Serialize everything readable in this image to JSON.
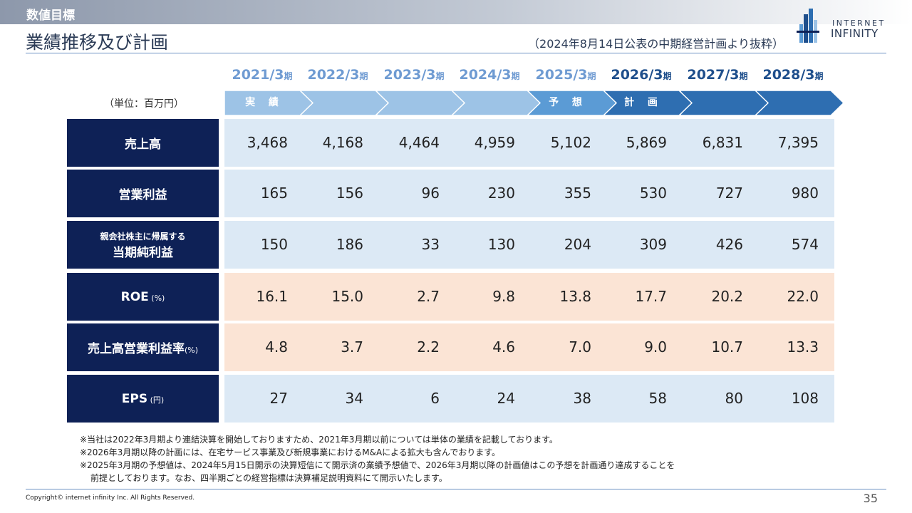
{
  "header": {
    "section_label": "数値目標",
    "title": "業績推移及び計画",
    "subtitle": "（2024年8月14日公表の中期経営計画より抜粋）"
  },
  "logo": {
    "line1": "INTERNET",
    "line2": "INFINITY"
  },
  "table": {
    "unit": "（単位：百万円）",
    "year_suffix": "期",
    "years": [
      {
        "label": "2021/3",
        "color": "#6f9bd2"
      },
      {
        "label": "2022/3",
        "color": "#6f9bd2"
      },
      {
        "label": "2023/3",
        "color": "#6f9bd2"
      },
      {
        "label": "2024/3",
        "color": "#6f9bd2"
      },
      {
        "label": "2025/3",
        "color": "#6f9bd2"
      },
      {
        "label": "2026/3",
        "color": "#1f4f8c"
      },
      {
        "label": "2027/3",
        "color": "#1f4f8c"
      },
      {
        "label": "2028/3",
        "color": "#1f4f8c"
      }
    ],
    "arrows": [
      {
        "text": "実 績",
        "color": "#9dc3e6"
      },
      {
        "text": "",
        "color": "#9dc3e6"
      },
      {
        "text": "",
        "color": "#9dc3e6"
      },
      {
        "text": "",
        "color": "#9dc3e6"
      },
      {
        "text": "予 想",
        "color": "#5b9bd5"
      },
      {
        "text": "計 画",
        "color": "#2e6eb1"
      },
      {
        "text": "",
        "color": "#2e6eb1"
      },
      {
        "text": "",
        "color": "#2e6eb1"
      }
    ],
    "rows": [
      {
        "label": "売上高",
        "small": "",
        "sub": "",
        "bg": "#dce9f5",
        "values": [
          "3,468",
          "4,168",
          "4,464",
          "4,959",
          "5,102",
          "5,869",
          "6,831",
          "7,395"
        ]
      },
      {
        "label": "営業利益",
        "small": "",
        "sub": "",
        "bg": "#dce9f5",
        "values": [
          "165",
          "156",
          "96",
          "230",
          "355",
          "530",
          "727",
          "980"
        ]
      },
      {
        "label": "当期純利益",
        "small": "",
        "sub": "親会社株主に帰属する",
        "bg": "#dce9f5",
        "values": [
          "150",
          "186",
          "33",
          "130",
          "204",
          "309",
          "426",
          "574"
        ]
      },
      {
        "label": "ROE",
        "small": " (%)",
        "sub": "",
        "bg": "#fbe4d5",
        "values": [
          "16.1",
          "15.0",
          "2.7",
          "9.8",
          "13.8",
          "17.7",
          "20.2",
          "22.0"
        ]
      },
      {
        "label": "売上高営業利益率",
        "small": "(%)",
        "sub": "",
        "bg": "#fbe4d5",
        "values": [
          "4.8",
          "3.7",
          "2.2",
          "4.6",
          "7.0",
          "9.0",
          "10.7",
          "13.3"
        ]
      },
      {
        "label": "EPS",
        "small": " (円)",
        "sub": "",
        "bg": "#dce9f5",
        "values": [
          "27",
          "34",
          "6",
          "24",
          "38",
          "58",
          "80",
          "108"
        ]
      }
    ]
  },
  "notes": [
    "※当社は2022年3月期より連結決算を開始しておりますため、2021年3月期以前については単体の業績を記載しております。",
    "※2026年3月期以降の計画には、在宅サービス事業及び新規事業におけるM&Aによる拡大も含んでおります。",
    "※2025年3月期の予想値は、2024年5月15日開示の決算短信にて開示済の業績予想値で、2026年3月期以降の計画値はこの予想を計画通り達成することを",
    "前提としております。なお、四半期ごとの経営指標は決算補足説明資料にて開示いたします。"
  ],
  "footer": {
    "copyright": "Copyright© internet infinity Inc. All Rights Reserved.",
    "page_number": "35"
  }
}
